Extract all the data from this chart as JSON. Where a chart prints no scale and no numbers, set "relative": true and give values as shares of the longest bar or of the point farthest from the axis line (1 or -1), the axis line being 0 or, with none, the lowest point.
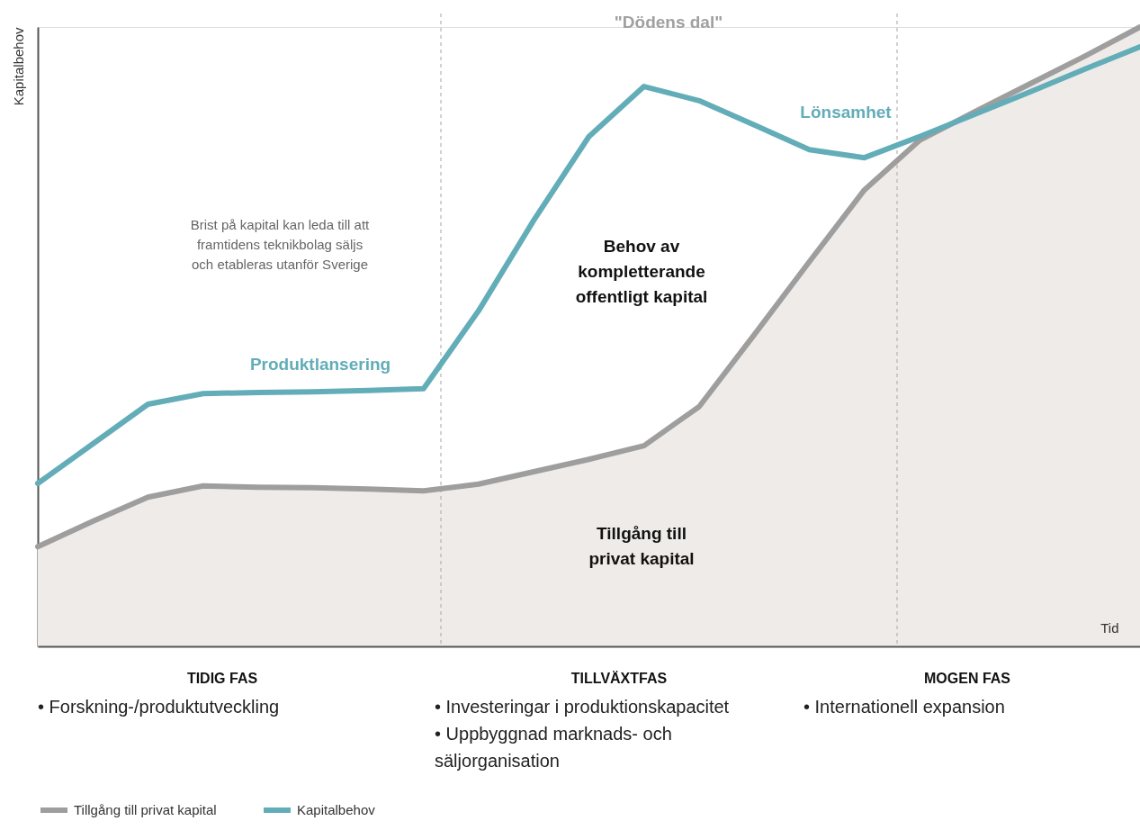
{
  "chart_data": {
    "type": "line",
    "relative": true,
    "xlabel": "Tid",
    "ylabel": "Kapitalbehov",
    "legend": "bottom left",
    "categories": [
      null,
      null,
      null,
      null,
      null,
      null,
      null,
      null,
      null,
      null,
      null,
      null,
      null,
      null,
      null,
      null,
      null,
      null,
      null,
      null,
      null
    ],
    "series": [
      {
        "name": "Tillgång till privat kapital",
        "type": "area",
        "color": "#9e9e9e",
        "values": [
          0.161,
          0.202,
          0.241,
          0.259,
          0.257,
          0.256,
          0.254,
          0.251,
          0.262,
          0.282,
          0.302,
          0.324,
          0.387,
          0.503,
          0.621,
          0.737,
          0.817,
          0.863,
          0.908,
          0.953,
          1.0
        ]
      },
      {
        "name": "Kapitalbehov",
        "color": "#62adb8",
        "values": [
          0.263,
          0.327,
          0.391,
          0.408,
          0.41,
          0.411,
          0.413,
          0.416,
          0.542,
          0.688,
          0.823,
          0.904,
          0.881,
          0.842,
          0.802,
          0.789,
          0.823,
          0.859,
          0.895,
          0.932,
          0.968
        ]
      }
    ],
    "annotations": [
      "Brist på kapital kan leda till att\nframtidens teknikbolag säljs\noch etableras utanför Sverige",
      "Produktlansering",
      "Lönsamhet",
      "\"Dödens dal\"",
      "Behov av\nkompletterande\noffentligt kapital",
      "Tillgång till\nprivat kapital",
      "TIDIG FAS",
      "• Forskning-/produktutveckling",
      "TILLVÄXTFAS",
      "• Investeringar i produktionskapacitet\n• Uppbyggnad marknads- och\n  säljorganisation",
      "MOGEN FAS",
      "• Internationell expansion"
    ]
  }
}
